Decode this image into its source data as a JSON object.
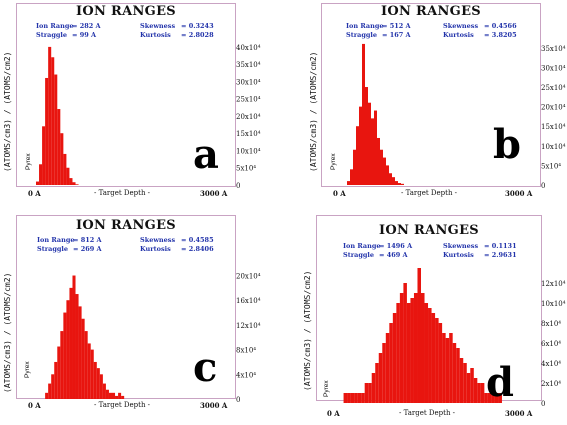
{
  "colors": {
    "bar": "#e8150f",
    "border": "#c9a3c3",
    "stat_text": "#2233aa"
  },
  "chart_data": [
    {
      "type": "bar",
      "panel": "a",
      "title": "ION RANGES",
      "stats": {
        "ion_range_label": "Ion Range",
        "ion_range": "=   282 A",
        "straggle_label": "Straggle",
        "straggle": "=   99 A",
        "skewness_label": "Skewness",
        "skewness": "= 0.3243",
        "kurtosis_label": "Kurtosis",
        "kurtosis": "= 2.8028"
      },
      "ylabel": "(ATOMS/cm3) / (ATOMS/cm2)",
      "material": "Pyrex",
      "xlabel": "- Target Depth -",
      "x_tick_labels": [
        "0 A",
        "3000 A"
      ],
      "xlim": [
        0,
        3000
      ],
      "ylim": [
        0,
        420000
      ],
      "y_ticks": [
        0,
        50000,
        100000,
        150000,
        200000,
        250000,
        300000,
        350000,
        400000
      ],
      "y_tick_labels": [
        "0",
        "5x10⁴",
        "10x10⁴",
        "15x10⁴",
        "20x10⁴",
        "25x10⁴",
        "30x10⁴",
        "35x10⁴",
        "40x10⁴"
      ],
      "x": [
        0,
        60,
        120,
        180,
        240,
        300,
        360,
        420,
        480,
        540,
        600,
        660,
        720,
        780
      ],
      "values": [
        10000,
        60000,
        170000,
        310000,
        400000,
        370000,
        320000,
        220000,
        150000,
        90000,
        50000,
        20000,
        8000,
        2000
      ]
    },
    {
      "type": "bar",
      "panel": "b",
      "title": "ION RANGES",
      "stats": {
        "ion_range_label": "Ion Range",
        "ion_range": "=   512 A",
        "straggle_label": "Straggle",
        "straggle": "=   167 A",
        "skewness_label": "Skewness",
        "skewness": "= 0.4566",
        "kurtosis_label": "Kurtosis",
        "kurtosis": "= 3.8205"
      },
      "ylabel": "(ATOMS/cm3) / (ATOMS/cm2)",
      "material": "Pyrex",
      "xlabel": "- Target Depth -",
      "x_tick_labels": [
        "0 A",
        "3000 A"
      ],
      "xlim": [
        0,
        3000
      ],
      "ylim": [
        0,
        370000
      ],
      "y_ticks": [
        0,
        50000,
        100000,
        150000,
        200000,
        250000,
        300000,
        350000
      ],
      "y_tick_labels": [
        "0",
        "5x10⁴",
        "10x10⁴",
        "15x10⁴",
        "20x10⁴",
        "25x10⁴",
        "30x10⁴",
        "35x10⁴"
      ],
      "x": [
        120,
        180,
        240,
        300,
        360,
        420,
        480,
        540,
        600,
        660,
        720,
        780,
        840,
        900,
        960,
        1020,
        1080,
        1140,
        1200
      ],
      "values": [
        10000,
        40000,
        90000,
        150000,
        200000,
        360000,
        250000,
        210000,
        170000,
        190000,
        120000,
        90000,
        70000,
        50000,
        30000,
        20000,
        10000,
        5000,
        3000
      ]
    },
    {
      "type": "bar",
      "panel": "c",
      "title": "ION RANGES",
      "stats": {
        "ion_range_label": "Ion Range",
        "ion_range": "=   812 A",
        "straggle_label": "Straggle",
        "straggle": "=   269 A",
        "skewness_label": "Skewness",
        "skewness": "= 0.4585",
        "kurtosis_label": "Kurtosis",
        "kurtosis": "= 2.8406"
      },
      "ylabel": "(ATOMS/cm3) / (ATOMS/cm2)",
      "material": "Pyrex",
      "xlabel": "- Target Depth -",
      "x_tick_labels": [
        "0 A",
        "3000 A"
      ],
      "xlim": [
        0,
        3000
      ],
      "ylim": [
        0,
        230000
      ],
      "y_ticks": [
        0,
        40000,
        80000,
        120000,
        160000,
        200000
      ],
      "y_tick_labels": [
        "0",
        "4x10⁴",
        "8x10⁴",
        "12x10⁴",
        "16x10⁴",
        "20x10⁴"
      ],
      "x": [
        180,
        240,
        300,
        360,
        420,
        480,
        540,
        600,
        660,
        720,
        780,
        840,
        900,
        960,
        1020,
        1080,
        1140,
        1200,
        1260,
        1320,
        1380,
        1440,
        1500,
        1560,
        1620,
        1680
      ],
      "values": [
        10000,
        25000,
        40000,
        60000,
        85000,
        110000,
        140000,
        160000,
        180000,
        200000,
        170000,
        150000,
        130000,
        110000,
        90000,
        80000,
        60000,
        50000,
        40000,
        25000,
        15000,
        10000,
        10000,
        5000,
        10000,
        5000
      ]
    },
    {
      "type": "bar",
      "panel": "d",
      "title": "ION RANGES",
      "stats": {
        "ion_range_label": "Ion Range",
        "ion_range": "=   1496 A",
        "straggle_label": "Straggle",
        "straggle": "=   469 A",
        "skewness_label": "Skewness",
        "skewness": "= 0.1131",
        "kurtosis_label": "Kurtosis",
        "kurtosis": "= 2.9631"
      },
      "ylabel": "(ATOMS/cm3) / (ATOMS/cm2)",
      "material": "Pyrex",
      "xlabel": "- Target Depth -",
      "x_tick_labels": [
        "0 A",
        "3000 A"
      ],
      "xlim": [
        0,
        3000
      ],
      "ylim": [
        0,
        140000
      ],
      "y_ticks": [
        0,
        20000,
        40000,
        60000,
        80000,
        100000,
        120000
      ],
      "y_tick_labels": [
        "0",
        "2x10⁴",
        "4x10⁴",
        "6x10⁴",
        "8x10⁴",
        "10x10⁴",
        "12x10⁴"
      ],
      "x": [
        180,
        240,
        300,
        360,
        420,
        480,
        540,
        600,
        660,
        720,
        780,
        840,
        900,
        960,
        1020,
        1080,
        1140,
        1200,
        1260,
        1320,
        1380,
        1440,
        1500,
        1560,
        1620,
        1680,
        1740,
        1800,
        1860,
        1920,
        1980,
        2040,
        2100,
        2160,
        2220,
        2280,
        2340,
        2400,
        2460,
        2520,
        2580,
        2640,
        2700,
        2760,
        2820
      ],
      "values": [
        10000,
        10000,
        10000,
        10000,
        10000,
        10000,
        20000,
        20000,
        30000,
        40000,
        50000,
        60000,
        70000,
        80000,
        90000,
        100000,
        110000,
        120000,
        100000,
        105000,
        110000,
        135000,
        110000,
        100000,
        95000,
        90000,
        85000,
        80000,
        70000,
        65000,
        70000,
        60000,
        55000,
        45000,
        40000,
        30000,
        35000,
        25000,
        20000,
        20000,
        10000,
        10000,
        10000,
        10000,
        10000
      ]
    }
  ]
}
